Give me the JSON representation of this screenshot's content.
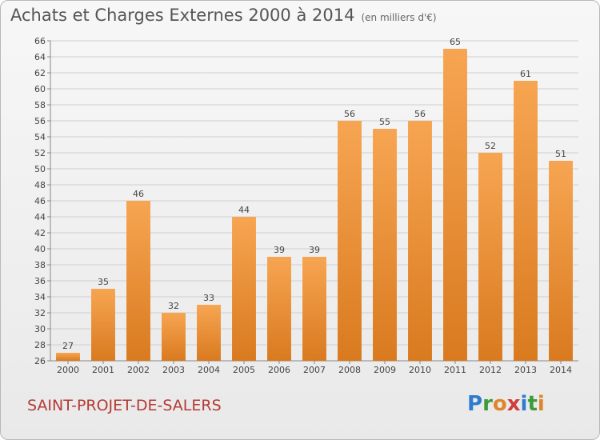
{
  "title": "Achats et Charges Externes 2000 à 2014",
  "unit": "(en milliers d'€)",
  "commune": "SAINT-PROJET-DE-SALERS",
  "logo": {
    "letters": [
      "P",
      "r",
      "o",
      "x",
      "i",
      "t",
      "i"
    ],
    "colors": [
      "#2e7bd0",
      "#3d9b3a",
      "#e0852b",
      "#d23c3c",
      "#2e7bd0",
      "#3d9b3a",
      "#e0852b"
    ]
  },
  "chart_data": {
    "type": "bar",
    "title": "Achats et Charges Externes 2000 à 2014",
    "subtitle": "(en milliers d'€)",
    "categories": [
      "2000",
      "2001",
      "2002",
      "2003",
      "2004",
      "2005",
      "2006",
      "2007",
      "2008",
      "2009",
      "2010",
      "2011",
      "2012",
      "2013",
      "2014"
    ],
    "values": [
      27,
      35,
      46,
      32,
      33,
      44,
      39,
      39,
      56,
      55,
      56,
      65,
      52,
      61,
      51
    ],
    "ylim": [
      26,
      66
    ],
    "yticks": [
      26,
      28,
      30,
      32,
      34,
      36,
      38,
      40,
      42,
      44,
      46,
      48,
      50,
      52,
      54,
      56,
      58,
      60,
      62,
      64,
      66
    ],
    "grid": true,
    "bar_color": "#f0963a"
  }
}
